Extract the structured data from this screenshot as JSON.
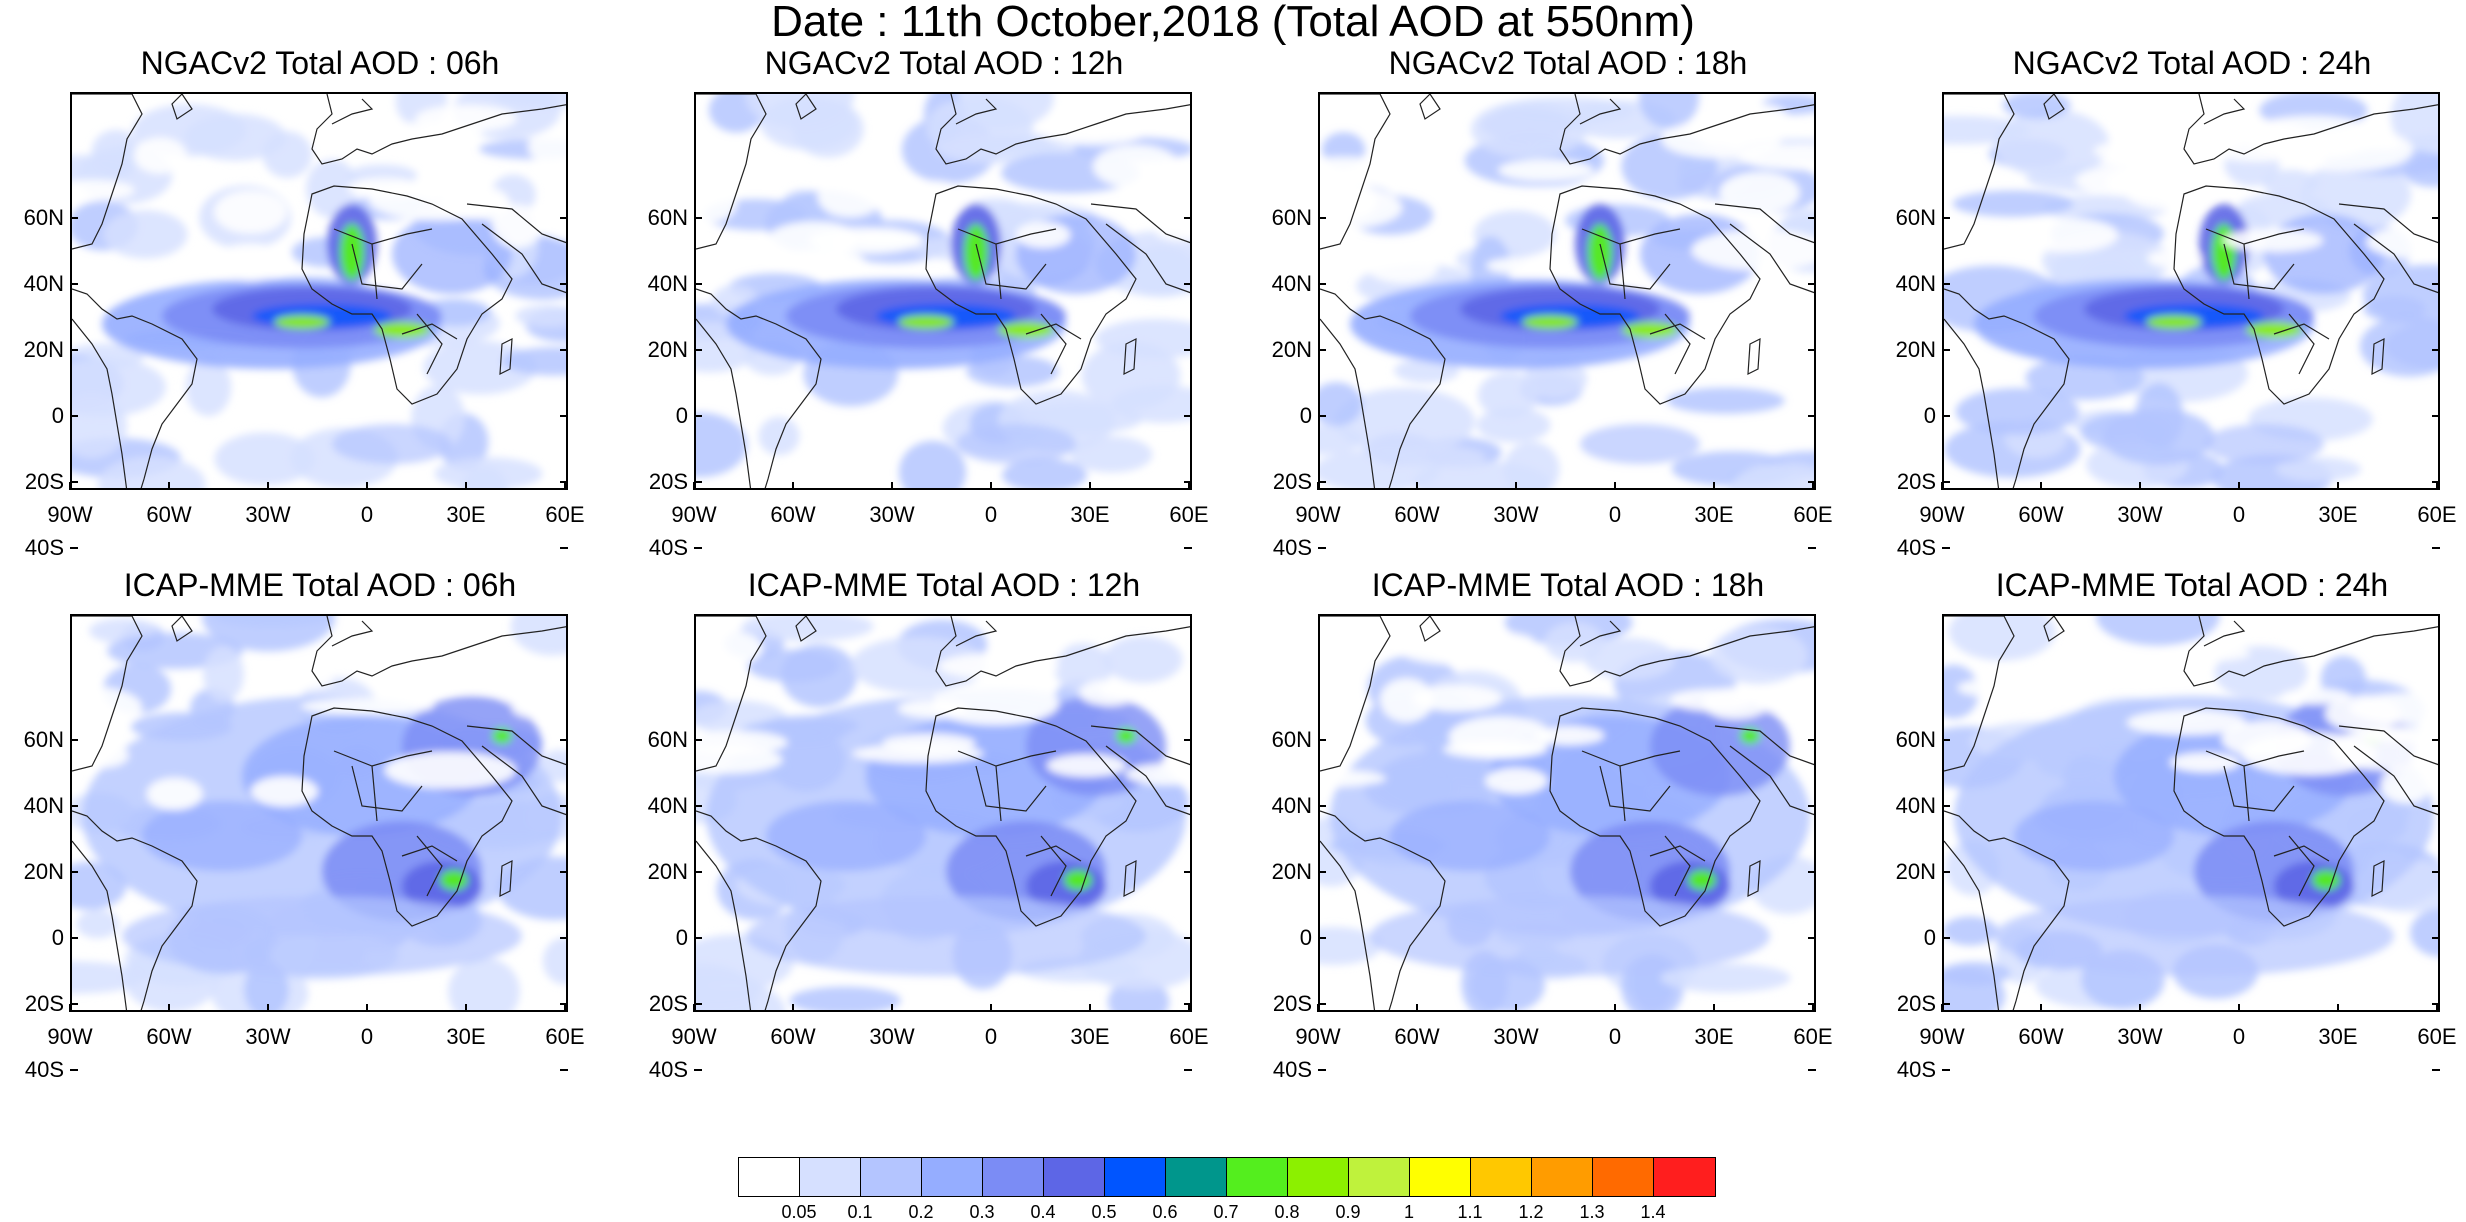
{
  "title": "Date : 11th October,2018 (Total AOD at 550nm)",
  "panels": [
    {
      "title": "NGACv2 Total AOD : 06h"
    },
    {
      "title": "NGACv2 Total AOD : 12h"
    },
    {
      "title": "NGACv2 Total AOD : 18h"
    },
    {
      "title": "NGACv2 Total AOD : 24h"
    },
    {
      "title": "ICAP-MME Total AOD : 06h"
    },
    {
      "title": "ICAP-MME Total AOD : 12h"
    },
    {
      "title": "ICAP-MME Total AOD : 18h"
    },
    {
      "title": "ICAP-MME Total AOD : 24h"
    }
  ],
  "lat_ticks": [
    "60N",
    "40N",
    "20N",
    "0",
    "20S",
    "40S"
  ],
  "lon_ticks": [
    "90W",
    "60W",
    "30W",
    "0",
    "30E",
    "60E"
  ],
  "colorbar": {
    "colors": [
      "#ffffff",
      "#d6e0ff",
      "#b4c5ff",
      "#95adff",
      "#7b8cf5",
      "#5d66e6",
      "#0055ff",
      "#00968c",
      "#54ee1e",
      "#8cf000",
      "#bff23c",
      "#ffff00",
      "#ffc800",
      "#ff9c00",
      "#ff6a00",
      "#ff1e1e"
    ],
    "labels": [
      "0.05",
      "0.1",
      "0.2",
      "0.3",
      "0.4",
      "0.5",
      "0.6",
      "0.7",
      "0.8",
      "0.9",
      "1",
      "1.1",
      "1.2",
      "1.3",
      "1.4"
    ]
  }
}
